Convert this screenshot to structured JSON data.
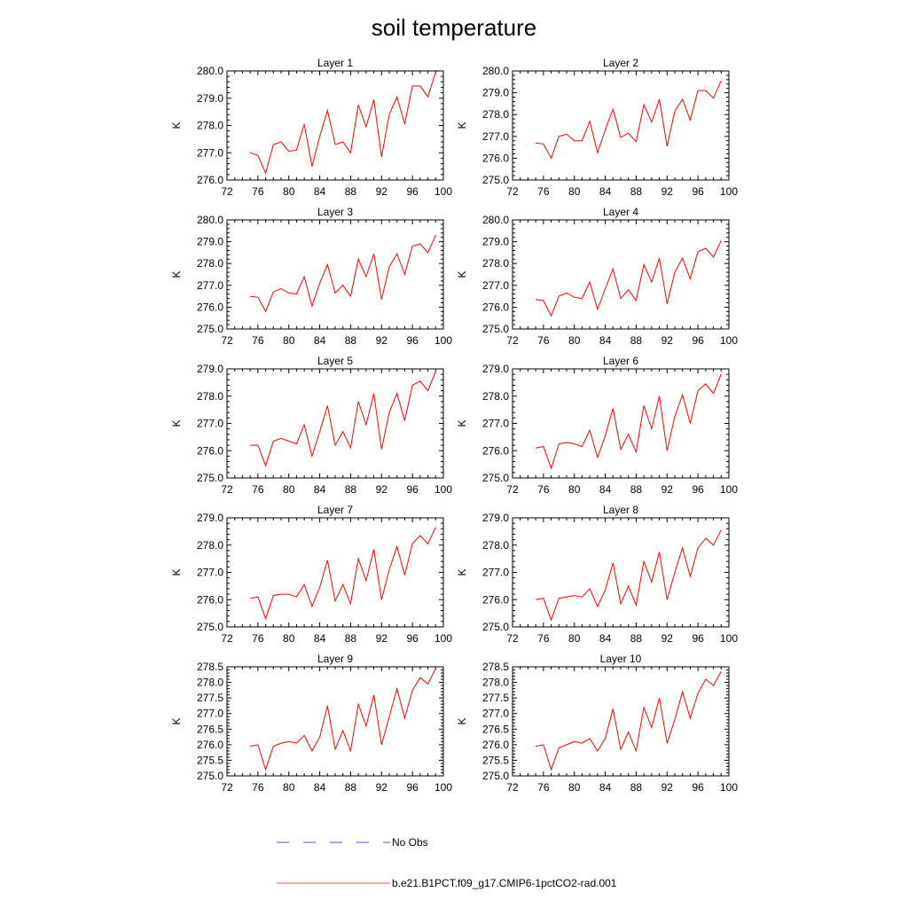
{
  "figure": {
    "title": "soil temperature"
  },
  "legend": {
    "entries": [
      {
        "label": "No Obs",
        "color": "#5555cc",
        "style": "dashed"
      },
      {
        "label": "b.e21.B1PCT.f09_g17.CMIP6-1pctCO2-rad.001",
        "color": "#ee5555",
        "style": "solid"
      }
    ]
  },
  "chart_data": [
    {
      "type": "line",
      "title": "Layer 1",
      "ylabel": "K",
      "xlim": [
        72,
        100
      ],
      "xticks": [
        72,
        76,
        80,
        84,
        88,
        92,
        96,
        100
      ],
      "ylim": [
        276.0,
        280.0
      ],
      "yticks": [
        "276.0",
        "277.0",
        "278.0",
        "279.0",
        "280.0"
      ],
      "grid": false,
      "color": "#ff0000",
      "x": [
        75,
        76,
        77,
        78,
        79,
        80,
        81,
        82,
        83,
        84,
        85,
        86,
        87,
        88,
        89,
        90,
        91,
        92,
        93,
        94,
        95,
        96,
        97,
        98,
        99
      ],
      "y": [
        277.0,
        276.9,
        276.25,
        277.3,
        277.4,
        277.05,
        277.1,
        278.05,
        276.5,
        277.6,
        278.55,
        277.3,
        277.4,
        277.0,
        278.75,
        277.95,
        278.95,
        276.85,
        278.4,
        279.05,
        278.05,
        279.45,
        279.45,
        279.05,
        279.95
      ]
    },
    {
      "type": "line",
      "title": "Layer 2",
      "ylabel": "K",
      "xlim": [
        72,
        100
      ],
      "xticks": [
        72,
        76,
        80,
        84,
        88,
        92,
        96,
        100
      ],
      "ylim": [
        275.0,
        280.0
      ],
      "yticks": [
        "275.0",
        "276.0",
        "277.0",
        "278.0",
        "279.0",
        "280.0"
      ],
      "grid": false,
      "color": "#ff0000",
      "x": [
        75,
        76,
        77,
        78,
        79,
        80,
        81,
        82,
        83,
        84,
        85,
        86,
        87,
        88,
        89,
        90,
        91,
        92,
        93,
        94,
        95,
        96,
        97,
        98,
        99
      ],
      "y": [
        276.7,
        276.65,
        276.0,
        277.0,
        277.1,
        276.8,
        276.8,
        277.7,
        276.25,
        277.3,
        278.25,
        276.95,
        277.15,
        276.75,
        278.45,
        277.65,
        278.7,
        276.55,
        278.15,
        278.7,
        277.75,
        279.1,
        279.1,
        278.75,
        279.55
      ]
    },
    {
      "type": "line",
      "title": "Layer 3",
      "ylabel": "K",
      "xlim": [
        72,
        100
      ],
      "xticks": [
        72,
        76,
        80,
        84,
        88,
        92,
        96,
        100
      ],
      "ylim": [
        275.0,
        280.0
      ],
      "yticks": [
        "275.0",
        "276.0",
        "277.0",
        "278.0",
        "279.0",
        "280.0"
      ],
      "grid": false,
      "color": "#ff0000",
      "x": [
        75,
        76,
        77,
        78,
        79,
        80,
        81,
        82,
        83,
        84,
        85,
        86,
        87,
        88,
        89,
        90,
        91,
        92,
        93,
        94,
        95,
        96,
        97,
        98,
        99
      ],
      "y": [
        276.5,
        276.45,
        275.8,
        276.7,
        276.85,
        276.65,
        276.6,
        277.4,
        276.05,
        277.1,
        277.95,
        276.65,
        277.0,
        276.5,
        278.2,
        277.4,
        278.45,
        276.35,
        277.85,
        278.45,
        277.5,
        278.8,
        278.9,
        278.5,
        279.3
      ]
    },
    {
      "type": "line",
      "title": "Layer 4",
      "ylabel": "K",
      "xlim": [
        72,
        100
      ],
      "xticks": [
        72,
        76,
        80,
        84,
        88,
        92,
        96,
        100
      ],
      "ylim": [
        275.0,
        280.0
      ],
      "yticks": [
        "275.0",
        "276.0",
        "277.0",
        "278.0",
        "279.0",
        "280.0"
      ],
      "grid": false,
      "color": "#ff0000",
      "x": [
        75,
        76,
        77,
        78,
        79,
        80,
        81,
        82,
        83,
        84,
        85,
        86,
        87,
        88,
        89,
        90,
        91,
        92,
        93,
        94,
        95,
        96,
        97,
        98,
        99
      ],
      "y": [
        276.35,
        276.3,
        275.6,
        276.5,
        276.65,
        276.45,
        276.4,
        277.15,
        275.9,
        276.85,
        277.75,
        276.4,
        276.8,
        276.3,
        277.95,
        277.15,
        278.25,
        276.15,
        277.6,
        278.25,
        277.3,
        278.55,
        278.7,
        278.3,
        279.05
      ]
    },
    {
      "type": "line",
      "title": "Layer 5",
      "ylabel": "K",
      "xlim": [
        72,
        100
      ],
      "xticks": [
        72,
        76,
        80,
        84,
        88,
        92,
        96,
        100
      ],
      "ylim": [
        275.0,
        279.0
      ],
      "yticks": [
        "275.0",
        "276.0",
        "277.0",
        "278.0",
        "279.0"
      ],
      "grid": false,
      "color": "#ff0000",
      "x": [
        75,
        76,
        77,
        78,
        79,
        80,
        81,
        82,
        83,
        84,
        85,
        86,
        87,
        88,
        89,
        90,
        91,
        92,
        93,
        94,
        95,
        96,
        97,
        98,
        99
      ],
      "y": [
        276.2,
        276.2,
        275.45,
        276.35,
        276.45,
        276.35,
        276.25,
        276.95,
        275.8,
        276.7,
        277.65,
        276.2,
        276.7,
        276.1,
        277.8,
        276.95,
        278.1,
        276.05,
        277.4,
        278.1,
        277.1,
        278.4,
        278.55,
        278.2,
        278.9
      ]
    },
    {
      "type": "line",
      "title": "Layer 6",
      "ylabel": "K",
      "xlim": [
        72,
        100
      ],
      "xticks": [
        72,
        76,
        80,
        84,
        88,
        92,
        96,
        100
      ],
      "ylim": [
        275.0,
        279.0
      ],
      "yticks": [
        "275.0",
        "276.0",
        "277.0",
        "278.0",
        "279.0"
      ],
      "grid": false,
      "color": "#ff0000",
      "x": [
        75,
        76,
        77,
        78,
        79,
        80,
        81,
        82,
        83,
        84,
        85,
        86,
        87,
        88,
        89,
        90,
        91,
        92,
        93,
        94,
        95,
        96,
        97,
        98,
        99
      ],
      "y": [
        276.1,
        276.15,
        275.35,
        276.25,
        276.3,
        276.25,
        276.15,
        276.75,
        275.75,
        276.55,
        277.55,
        276.05,
        276.6,
        275.95,
        277.65,
        276.8,
        278.0,
        276.0,
        277.25,
        278.05,
        277.0,
        278.2,
        278.45,
        278.1,
        278.8
      ]
    },
    {
      "type": "line",
      "title": "Layer 7",
      "ylabel": "K",
      "xlim": [
        72,
        100
      ],
      "xticks": [
        72,
        76,
        80,
        84,
        88,
        92,
        96,
        100
      ],
      "ylim": [
        275.0,
        279.0
      ],
      "yticks": [
        "275.0",
        "276.0",
        "277.0",
        "278.0",
        "279.0"
      ],
      "grid": false,
      "color": "#ff0000",
      "x": [
        75,
        76,
        77,
        78,
        79,
        80,
        81,
        82,
        83,
        84,
        85,
        86,
        87,
        88,
        89,
        90,
        91,
        92,
        93,
        94,
        95,
        96,
        97,
        98,
        99
      ],
      "y": [
        276.05,
        276.1,
        275.3,
        276.15,
        276.2,
        276.2,
        276.1,
        276.55,
        275.75,
        276.45,
        277.45,
        275.95,
        276.55,
        275.85,
        277.5,
        276.7,
        277.85,
        276.0,
        277.1,
        277.95,
        276.9,
        278.05,
        278.35,
        278.05,
        278.65
      ]
    },
    {
      "type": "line",
      "title": "Layer 8",
      "ylabel": "K",
      "xlim": [
        72,
        100
      ],
      "xticks": [
        72,
        76,
        80,
        84,
        88,
        92,
        96,
        100
      ],
      "ylim": [
        275.0,
        279.0
      ],
      "yticks": [
        "275.0",
        "276.0",
        "277.0",
        "278.0",
        "279.0"
      ],
      "grid": false,
      "color": "#ff0000",
      "x": [
        75,
        76,
        77,
        78,
        79,
        80,
        81,
        82,
        83,
        84,
        85,
        86,
        87,
        88,
        89,
        90,
        91,
        92,
        93,
        94,
        95,
        96,
        97,
        98,
        99
      ],
      "y": [
        276.0,
        276.05,
        275.25,
        276.05,
        276.1,
        276.15,
        276.1,
        276.4,
        275.75,
        276.35,
        277.35,
        275.85,
        276.5,
        275.8,
        277.4,
        276.65,
        277.75,
        276.0,
        277.0,
        277.9,
        276.85,
        277.9,
        278.25,
        278.0,
        278.55
      ]
    },
    {
      "type": "line",
      "title": "Layer 9",
      "ylabel": "K",
      "xlim": [
        72,
        100
      ],
      "xticks": [
        72,
        76,
        80,
        84,
        88,
        92,
        96,
        100
      ],
      "ylim": [
        275.0,
        278.5
      ],
      "yticks": [
        "275.0",
        "275.5",
        "276.0",
        "276.5",
        "277.0",
        "277.5",
        "278.0",
        "278.5"
      ],
      "grid": false,
      "color": "#ff0000",
      "x": [
        75,
        76,
        77,
        78,
        79,
        80,
        81,
        82,
        83,
        84,
        85,
        86,
        87,
        88,
        89,
        90,
        91,
        92,
        93,
        94,
        95,
        96,
        97,
        98,
        99
      ],
      "y": [
        275.95,
        276.0,
        275.2,
        275.95,
        276.05,
        276.1,
        276.05,
        276.3,
        275.8,
        276.25,
        277.25,
        275.85,
        276.45,
        275.8,
        277.3,
        276.6,
        277.6,
        276.0,
        276.9,
        277.8,
        276.85,
        277.75,
        278.15,
        277.95,
        278.45
      ]
    },
    {
      "type": "line",
      "title": "Layer 10",
      "ylabel": "K",
      "xlim": [
        72,
        100
      ],
      "xticks": [
        72,
        76,
        80,
        84,
        88,
        92,
        96,
        100
      ],
      "ylim": [
        275.0,
        278.5
      ],
      "yticks": [
        "275.0",
        "275.5",
        "276.0",
        "276.5",
        "277.0",
        "277.5",
        "278.0",
        "278.5"
      ],
      "grid": false,
      "color": "#ff0000",
      "x": [
        75,
        76,
        77,
        78,
        79,
        80,
        81,
        82,
        83,
        84,
        85,
        86,
        87,
        88,
        89,
        90,
        91,
        92,
        93,
        94,
        95,
        96,
        97,
        98,
        99
      ],
      "y": [
        275.95,
        276.0,
        275.2,
        275.9,
        276.0,
        276.1,
        276.05,
        276.2,
        275.8,
        276.2,
        277.15,
        275.85,
        276.4,
        275.8,
        277.2,
        276.55,
        277.5,
        276.05,
        276.8,
        277.7,
        276.85,
        277.65,
        278.1,
        277.9,
        278.35
      ]
    }
  ]
}
